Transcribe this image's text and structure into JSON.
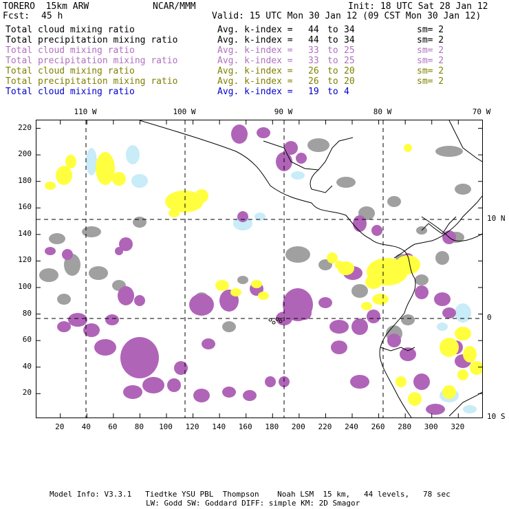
{
  "header": {
    "model": "TORERO  15km ARW",
    "center": "NCAR/MMM",
    "init": "Init: 18 UTC Sat 28 Jan 12",
    "fcst_label": "Fcst:",
    "fcst_value": "45 h",
    "valid": "Valid: 15 UTC Mon 30 Jan 12 (09 CST Mon 30 Jan 12)"
  },
  "legend": [
    {
      "field": "Total cloud mixing ratio",
      "index_label": "Avg. k-index =",
      "from": "44",
      "to_label": "to",
      "to": "34",
      "sm": "sm= 2",
      "color": "#000000"
    },
    {
      "field": "Total precipitation mixing ratio",
      "index_label": "Avg. k-index =",
      "from": "44",
      "to_label": "to",
      "to": "34",
      "sm": "sm= 2",
      "color": "#000000"
    },
    {
      "field": "Total cloud mixing ratio",
      "index_label": "Avg. k-index =",
      "from": "33",
      "to_label": "to",
      "to": "25",
      "sm": "sm= 2",
      "color": "#b070c0"
    },
    {
      "field": "Total precipitation mixing ratio",
      "index_label": "Avg. k-index =",
      "from": "33",
      "to_label": "to",
      "to": "25",
      "sm": "sm= 2",
      "color": "#b070c0"
    },
    {
      "field": "Total cloud mixing ratio",
      "index_label": "Avg. k-index =",
      "from": "26",
      "to_label": "to",
      "to": "20",
      "sm": "sm= 2",
      "color": "#808000"
    },
    {
      "field": "Total precipitation mixing ratio",
      "index_label": "Avg. k-index =",
      "from": "26",
      "to_label": "to",
      "to": "20",
      "sm": "sm= 2",
      "color": "#808000"
    },
    {
      "field": "Total cloud mixing ratio",
      "index_label": "Avg. k-index =",
      "from": "19",
      "to_label": "to",
      "to": "4",
      "sm": "",
      "color": "#0000cc"
    }
  ],
  "map": {
    "lon_labels": [
      "110 W",
      "100 W",
      "90 W",
      "80 W",
      "70 W"
    ],
    "lat_labels": [
      "10 N",
      "0",
      "10 S"
    ],
    "y_ticks": [
      "220",
      "200",
      "180",
      "160",
      "140",
      "120",
      "100",
      "80",
      "60",
      "40",
      "20"
    ],
    "x_ticks": [
      "20",
      "40",
      "60",
      "80",
      "100",
      "120",
      "140",
      "160",
      "180",
      "200",
      "220",
      "240",
      "260",
      "280",
      "300",
      "320"
    ],
    "colors": {
      "gray": "#a0a0a0",
      "purple": "#b064b8",
      "yellow": "#ffff40",
      "yellow_dark": "#e8e840",
      "lightblue": "#c8ecf8",
      "coast": "#000000",
      "grid": "#000000"
    }
  },
  "footer": {
    "line1": "Model Info: V3.3.1   Tiedtke YSU PBL  Thompson    Noah LSM  15 km,   44 levels,   78 sec",
    "line2": "LW: Godd SW: Goddard DIFF: simple KM: 2D Smagor"
  }
}
